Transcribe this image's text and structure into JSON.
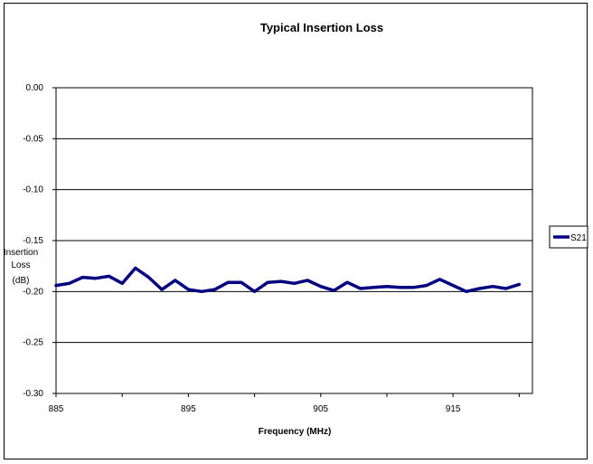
{
  "chart_data": {
    "type": "line",
    "title": "Typical Insertion Loss",
    "xlabel": "Frequency (MHz)",
    "ylabel": [
      "Insertion",
      "Loss",
      "(dB)"
    ],
    "xlim": [
      885,
      921
    ],
    "ylim": [
      -0.3,
      0.0
    ],
    "xticks": [
      885,
      895,
      905,
      915
    ],
    "yticks": [
      "0.00",
      "-0.05",
      "-0.10",
      "-0.15",
      "-0.20",
      "-0.25",
      "-0.30"
    ],
    "ytick_values": [
      0.0,
      -0.05,
      -0.1,
      -0.15,
      -0.2,
      -0.25,
      -0.3
    ],
    "grid": "horizontal",
    "legend_position": "right",
    "series": [
      {
        "name": "S21",
        "color": "#000080",
        "x": [
          885,
          886,
          887,
          888,
          889,
          890,
          891,
          892,
          893,
          894,
          895,
          896,
          897,
          898,
          899,
          900,
          901,
          902,
          903,
          904,
          905,
          906,
          907,
          908,
          909,
          910,
          911,
          912,
          913,
          914,
          915,
          916,
          917,
          918,
          919,
          920
        ],
        "y": [
          -0.194,
          -0.192,
          -0.186,
          -0.187,
          -0.185,
          -0.192,
          -0.177,
          -0.186,
          -0.198,
          -0.189,
          -0.198,
          -0.2,
          -0.198,
          -0.191,
          -0.191,
          -0.2,
          -0.191,
          -0.19,
          -0.192,
          -0.189,
          -0.195,
          -0.199,
          -0.191,
          -0.197,
          -0.196,
          -0.195,
          -0.196,
          -0.196,
          -0.194,
          -0.188,
          -0.194,
          -0.2,
          -0.197,
          -0.195,
          -0.197,
          -0.193
        ]
      }
    ]
  }
}
